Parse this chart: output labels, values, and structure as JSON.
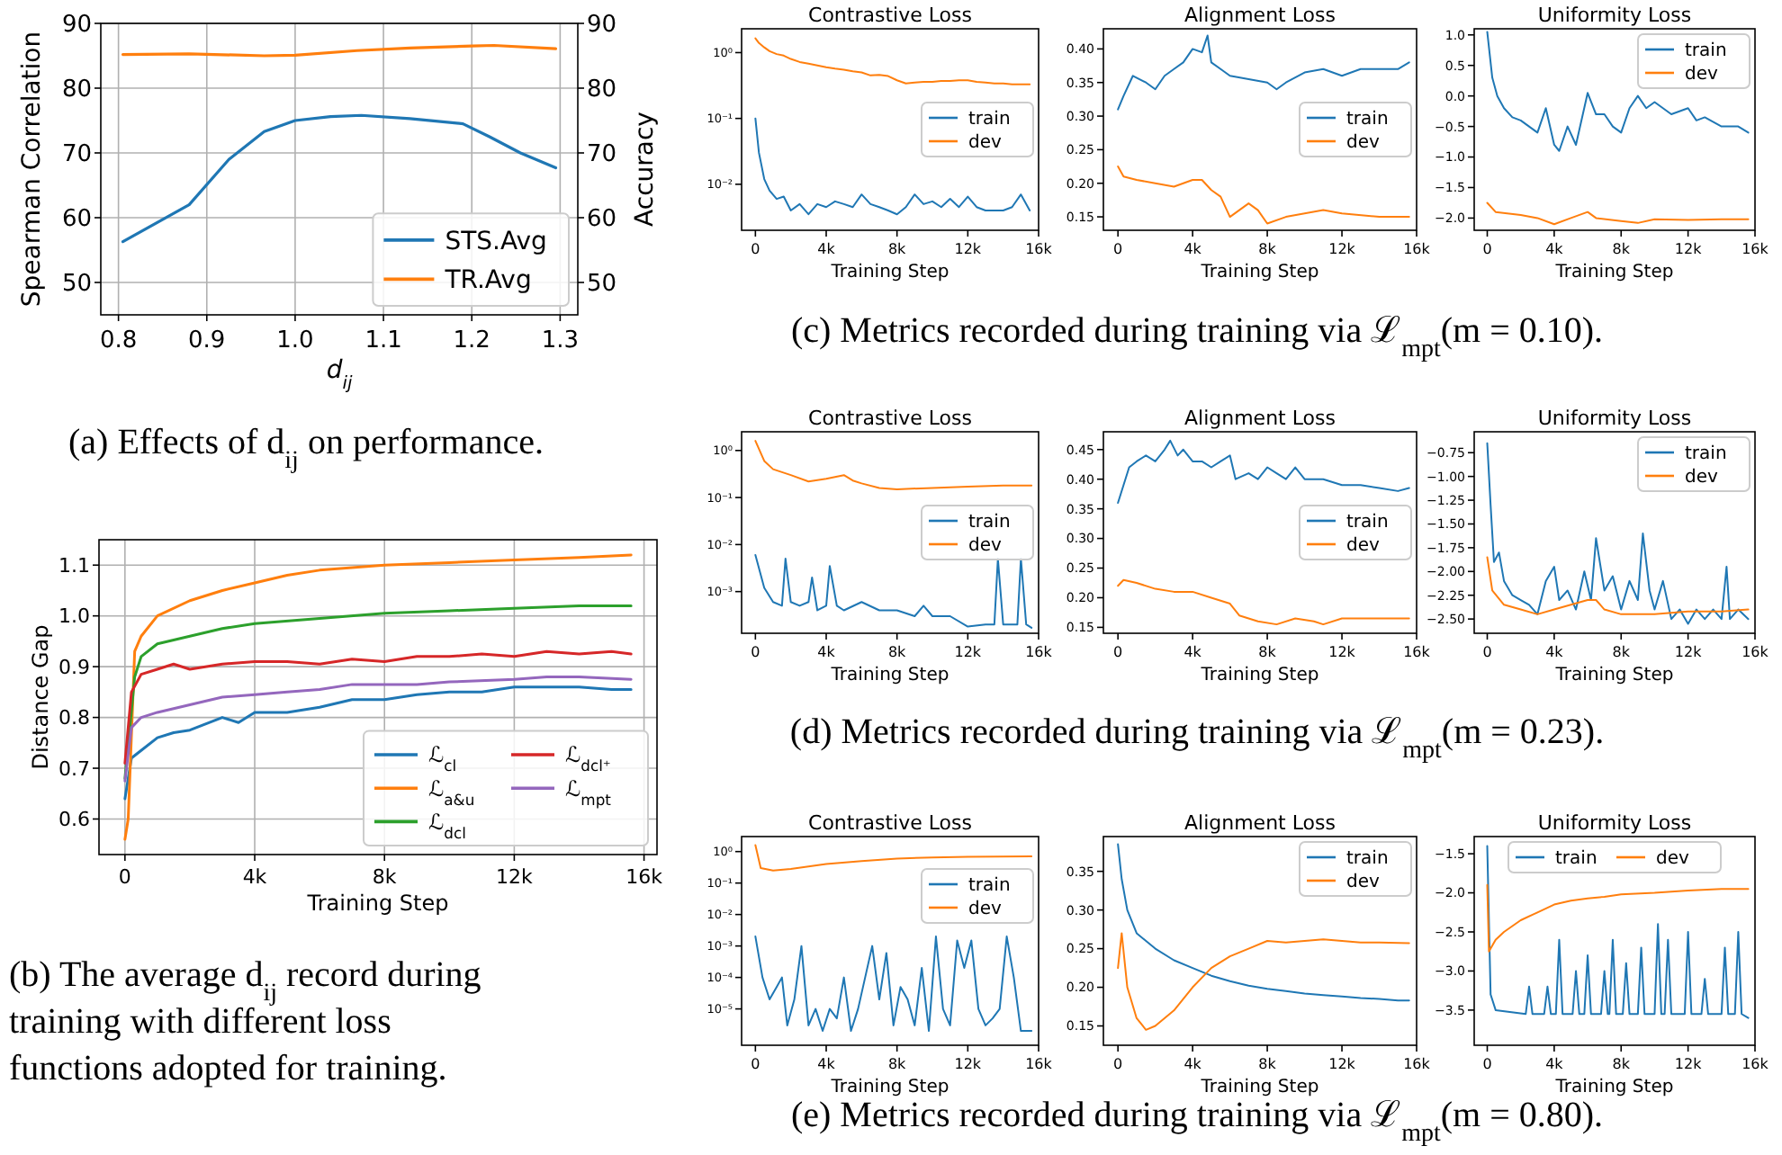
{
  "chart_data": [
    {
      "type": "line",
      "xlabel": "d$_{ij}$",
      "ylabel": "Spearman Correlation",
      "y2label": "Accuracy",
      "annotations": [
        "(a) Effects of d$_{ij}$ on performance."
      ],
      "xlim": [
        0.78,
        1.32
      ],
      "xticks": [
        0.8,
        0.9,
        {
          "value": 1,
          "label": "1.0"
        },
        1.1,
        1.2,
        1.3
      ],
      "ylim": [
        45,
        90
      ],
      "yticks": [
        50,
        60,
        70,
        80,
        90
      ],
      "y2lim": [
        45,
        90
      ],
      "y2ticks": [
        50,
        60,
        70,
        80,
        90
      ],
      "grid": true,
      "legend": "bottom right",
      "series": [
        {
          "name": "STS.Avg",
          "color": "#1f77b4",
          "x": [
            0.805,
            0.88,
            0.925,
            0.965,
            1.0,
            1.04,
            1.075,
            1.13,
            1.19,
            1.22,
            1.255,
            1.295
          ],
          "values": [
            56.3,
            62,
            69,
            73.3,
            75,
            75.6,
            75.8,
            75.3,
            74.5,
            72.5,
            70,
            67.7
          ]
        },
        {
          "name": "TR.Avg",
          "color": "#ff7f0e",
          "x": [
            0.805,
            0.88,
            0.965,
            1.0,
            1.07,
            1.13,
            1.2,
            1.225,
            1.295
          ],
          "values": [
            85.2,
            85.3,
            85.0,
            85.1,
            85.8,
            86.2,
            86.5,
            86.6,
            86.1
          ]
        }
      ]
    },
    {
      "type": "line",
      "xlabel": "Training Step",
      "ylabel": "Distance Gap",
      "annotations": [
        "(b) The average d$_{ij}$ record during training with different loss functions adopted for training."
      ],
      "xlim": [
        -800,
        16400
      ],
      "xticks": [
        0,
        {
          "value": 4000,
          "label": "4k"
        },
        {
          "value": 8000,
          "label": "8k"
        },
        {
          "value": 12000,
          "label": "12k"
        },
        {
          "value": 16000,
          "label": "16k"
        }
      ],
      "ylim": [
        0.53,
        1.15
      ],
      "yticks": [
        0.6,
        0.7,
        0.8,
        0.9,
        {
          "value": 1,
          "label": "1.0"
        },
        1.1
      ],
      "grid": true,
      "legend": "bottom right",
      "series": [
        {
          "name": "ℒ$_{cl}$",
          "color": "#1f77b4",
          "x": [
            0,
            200,
            500,
            1000,
            1500,
            2000,
            3000,
            3500,
            4000,
            5000,
            6000,
            7000,
            8000,
            9000,
            10000,
            11000,
            12000,
            13000,
            14000,
            15000,
            15600
          ],
          "values": [
            0.64,
            0.72,
            0.735,
            0.76,
            0.77,
            0.775,
            0.8,
            0.79,
            0.81,
            0.81,
            0.82,
            0.835,
            0.835,
            0.845,
            0.85,
            0.85,
            0.86,
            0.86,
            0.86,
            0.855,
            0.855
          ]
        },
        {
          "name": "ℒ$_{a&u}$",
          "color": "#ff7f0e",
          "x": [
            0,
            100,
            300,
            500,
            1000,
            2000,
            3000,
            4000,
            5000,
            6000,
            8000,
            10000,
            12000,
            14000,
            15600
          ],
          "values": [
            0.56,
            0.6,
            0.93,
            0.96,
            1.0,
            1.03,
            1.05,
            1.065,
            1.08,
            1.09,
            1.1,
            1.105,
            1.11,
            1.115,
            1.12
          ]
        },
        {
          "name": "ℒ$_{dcl}$",
          "color": "#2ca02c",
          "x": [
            0,
            300,
            500,
            1000,
            2000,
            3000,
            4000,
            6000,
            8000,
            10000,
            12000,
            14000,
            15600
          ],
          "values": [
            0.68,
            0.88,
            0.92,
            0.945,
            0.96,
            0.975,
            0.985,
            0.995,
            1.005,
            1.01,
            1.015,
            1.02,
            1.02
          ]
        },
        {
          "name": "ℒ$_{dcl⁺}$",
          "color": "#d62728",
          "x": [
            0,
            200,
            500,
            1000,
            1500,
            2000,
            3000,
            4000,
            5000,
            6000,
            7000,
            8000,
            9000,
            10000,
            11000,
            12000,
            13000,
            14000,
            15000,
            15600
          ],
          "values": [
            0.71,
            0.85,
            0.885,
            0.895,
            0.905,
            0.895,
            0.905,
            0.91,
            0.91,
            0.905,
            0.915,
            0.91,
            0.92,
            0.92,
            0.925,
            0.92,
            0.93,
            0.925,
            0.93,
            0.925
          ]
        },
        {
          "name": "ℒ$_{mpt}$",
          "color": "#9467bd",
          "x": [
            0,
            200,
            500,
            1000,
            2000,
            3000,
            4000,
            5000,
            6000,
            7000,
            8000,
            9000,
            10000,
            12000,
            13000,
            14000,
            15600
          ],
          "values": [
            0.675,
            0.78,
            0.8,
            0.81,
            0.825,
            0.84,
            0.845,
            0.85,
            0.855,
            0.865,
            0.865,
            0.865,
            0.87,
            0.875,
            0.88,
            0.88,
            0.875
          ]
        }
      ]
    },
    {
      "type": "line",
      "title": "Contrastive Loss",
      "xlabel": "Training Step",
      "log": "y",
      "xlim": [
        -780,
        16000
      ],
      "xticks": [
        0,
        {
          "value": 4000,
          "label": "4k"
        },
        {
          "value": 8000,
          "label": "8k"
        },
        {
          "value": 12000,
          "label": "12k"
        },
        {
          "value": 16000,
          "label": "16k"
        }
      ],
      "ylim": [
        0.002,
        2.3
      ],
      "yticks": [
        {
          "value": 1,
          "label": "10⁰"
        },
        {
          "value": 0.1,
          "label": "10⁻¹"
        },
        {
          "value": 0.01,
          "label": "10⁻²"
        }
      ],
      "legend": "right",
      "x": [
        0,
        200,
        500,
        800,
        1200,
        1600,
        2000,
        2500,
        3000,
        3500,
        4000,
        4500,
        5000,
        5500,
        6000,
        6500,
        7000,
        7500,
        8000,
        8500,
        9000,
        9500,
        10000,
        10500,
        11000,
        11500,
        12000,
        12500,
        13000,
        13500,
        14000,
        14500,
        15000,
        15500
      ],
      "series": [
        {
          "name": "train",
          "color": "#1f77b4",
          "values": [
            0.1,
            0.03,
            0.012,
            0.008,
            0.006,
            0.0065,
            0.004,
            0.005,
            0.0035,
            0.005,
            0.0045,
            0.0055,
            0.005,
            0.0045,
            0.007,
            0.005,
            0.0045,
            0.004,
            0.0035,
            0.0045,
            0.007,
            0.005,
            0.0055,
            0.0045,
            0.006,
            0.0045,
            0.0065,
            0.0045,
            0.004,
            0.004,
            0.004,
            0.0045,
            0.007,
            0.004
          ]
        },
        {
          "name": "dev",
          "color": "#ff7f0e",
          "values": [
            1.65,
            1.4,
            1.2,
            1.05,
            0.95,
            0.9,
            0.8,
            0.72,
            0.68,
            0.64,
            0.6,
            0.57,
            0.55,
            0.52,
            0.5,
            0.45,
            0.46,
            0.44,
            0.38,
            0.34,
            0.35,
            0.36,
            0.36,
            0.37,
            0.37,
            0.38,
            0.38,
            0.36,
            0.35,
            0.34,
            0.34,
            0.33,
            0.33,
            0.33
          ]
        }
      ]
    },
    {
      "type": "line",
      "title": "Alignment Loss",
      "xlabel": "Training Step",
      "annotations": [
        "(c) Metrics recorded during training via ℒ$_{mpt}$(m = 0.10)."
      ],
      "xlim": [
        -780,
        16000
      ],
      "xticks": [
        0,
        {
          "value": 4000,
          "label": "4k"
        },
        {
          "value": 8000,
          "label": "8k"
        },
        {
          "value": 12000,
          "label": "12k"
        },
        {
          "value": 16000,
          "label": "16k"
        }
      ],
      "ylim": [
        0.13,
        0.43
      ],
      "yticks": [
        0.15,
        {
          "value": 0.2,
          "label": "0.20"
        },
        0.25,
        {
          "value": 0.3,
          "label": "0.30"
        },
        0.35,
        {
          "value": 0.4,
          "label": "0.40"
        }
      ],
      "legend": "right",
      "series": [
        {
          "name": "train",
          "color": "#1f77b4",
          "x": [
            0,
            300,
            800,
            1500,
            2000,
            2500,
            3000,
            3500,
            4000,
            4500,
            4800,
            5000,
            5500,
            6000,
            7000,
            8000,
            8500,
            9000,
            10000,
            11000,
            12000,
            13000,
            14000,
            15000,
            15600
          ],
          "values": [
            0.31,
            0.33,
            0.36,
            0.35,
            0.34,
            0.36,
            0.37,
            0.38,
            0.4,
            0.395,
            0.42,
            0.38,
            0.37,
            0.36,
            0.355,
            0.35,
            0.34,
            0.35,
            0.365,
            0.37,
            0.36,
            0.37,
            0.37,
            0.37,
            0.38
          ]
        },
        {
          "name": "dev",
          "color": "#ff7f0e",
          "x": [
            0,
            300,
            1000,
            2000,
            3000,
            4000,
            4500,
            5000,
            5500,
            6000,
            6500,
            7000,
            7500,
            8000,
            9000,
            10000,
            11000,
            12000,
            14000,
            15600
          ],
          "values": [
            0.225,
            0.21,
            0.205,
            0.2,
            0.195,
            0.205,
            0.205,
            0.19,
            0.18,
            0.15,
            0.16,
            0.17,
            0.16,
            0.14,
            0.15,
            0.155,
            0.16,
            0.155,
            0.15,
            0.15
          ]
        }
      ]
    },
    {
      "type": "line",
      "title": "Uniformity Loss",
      "xlabel": "Training Step",
      "xlim": [
        -780,
        16000
      ],
      "xticks": [
        0,
        {
          "value": 4000,
          "label": "4k"
        },
        {
          "value": 8000,
          "label": "8k"
        },
        {
          "value": 12000,
          "label": "12k"
        },
        {
          "value": 16000,
          "label": "16k"
        }
      ],
      "ylim": [
        -2.2,
        1.1
      ],
      "yticks": [
        {
          "value": 1,
          "label": "1.0"
        },
        0.5,
        {
          "value": 0,
          "label": "0.0"
        },
        {
          "value": -0.5,
          "label": "−0.5"
        },
        {
          "value": -1,
          "label": "−1.0"
        },
        {
          "value": -1.5,
          "label": "−1.5"
        },
        {
          "value": -2,
          "label": "−2.0"
        }
      ],
      "legend": "top right",
      "series": [
        {
          "name": "train",
          "color": "#1f77b4",
          "x": [
            0,
            300,
            600,
            1000,
            1500,
            2000,
            2500,
            3000,
            3500,
            4000,
            4300,
            4800,
            5300,
            6000,
            6500,
            7000,
            7500,
            8000,
            8500,
            9000,
            9500,
            10000,
            11000,
            12000,
            12500,
            13000,
            14000,
            15000,
            15600
          ],
          "values": [
            1.05,
            0.3,
            0,
            -0.2,
            -0.35,
            -0.4,
            -0.5,
            -0.6,
            -0.2,
            -0.8,
            -0.9,
            -0.5,
            -0.8,
            0.05,
            -0.3,
            -0.3,
            -0.5,
            -0.6,
            -0.2,
            0,
            -0.2,
            -0.1,
            -0.3,
            -0.2,
            -0.4,
            -0.35,
            -0.5,
            -0.5,
            -0.6
          ]
        },
        {
          "name": "dev",
          "color": "#ff7f0e",
          "x": [
            0,
            500,
            2000,
            3000,
            4000,
            5000,
            6000,
            6500,
            8000,
            9000,
            10000,
            12000,
            14000,
            15600
          ],
          "values": [
            -1.75,
            -1.9,
            -1.95,
            -2,
            -2.1,
            -2,
            -1.9,
            -2,
            -2.05,
            -2.08,
            -2.02,
            -2.03,
            -2.02,
            -2.02
          ]
        }
      ]
    },
    {
      "type": "line",
      "title": "Contrastive Loss",
      "xlabel": "Training Step",
      "log": "y",
      "xlim": [
        -780,
        16000
      ],
      "xticks": [
        0,
        {
          "value": 4000,
          "label": "4k"
        },
        {
          "value": 8000,
          "label": "8k"
        },
        {
          "value": 12000,
          "label": "12k"
        },
        {
          "value": 16000,
          "label": "16k"
        }
      ],
      "ylim": [
        0.00013,
        2.5
      ],
      "yticks": [
        {
          "value": 1,
          "label": "10⁰"
        },
        {
          "value": 0.1,
          "label": "10⁻¹"
        },
        {
          "value": 0.01,
          "label": "10⁻²"
        },
        {
          "value": 0.001,
          "label": "10⁻³"
        }
      ],
      "legend": "right",
      "series": [
        {
          "name": "train",
          "color": "#1f77b4",
          "x": [
            0,
            500,
            1000,
            1500,
            1700,
            2000,
            2500,
            3000,
            3200,
            3500,
            4000,
            4200,
            4600,
            5000,
            6000,
            7000,
            8000,
            9000,
            9500,
            10000,
            11000,
            12000,
            13000,
            13500,
            13700,
            14000,
            14800,
            15000,
            15300,
            15600
          ],
          "values": [
            0.006,
            0.0012,
            0.0006,
            0.0005,
            0.005,
            0.0006,
            0.0005,
            0.0006,
            0.002,
            0.0004,
            0.0005,
            0.0035,
            0.0005,
            0.0004,
            0.0006,
            0.0004,
            0.0004,
            0.0003,
            0.0005,
            0.0003,
            0.0003,
            0.00018,
            0.0002,
            0.0002,
            0.005,
            0.0002,
            0.0002,
            0.005,
            0.0002,
            0.00017
          ]
        },
        {
          "name": "dev",
          "color": "#ff7f0e",
          "x": [
            0,
            500,
            1000,
            2000,
            3000,
            4000,
            5000,
            5500,
            6000,
            7000,
            8000,
            10000,
            12000,
            14000,
            15600
          ],
          "values": [
            1.6,
            0.6,
            0.4,
            0.3,
            0.22,
            0.25,
            0.3,
            0.23,
            0.2,
            0.16,
            0.15,
            0.16,
            0.17,
            0.18,
            0.18
          ]
        }
      ]
    },
    {
      "type": "line",
      "title": "Alignment Loss",
      "xlabel": "Training Step",
      "annotations": [
        "(d) Metrics recorded during training via ℒ$_{mpt}$(m = 0.23)."
      ],
      "xlim": [
        -780,
        16000
      ],
      "xticks": [
        0,
        {
          "value": 4000,
          "label": "4k"
        },
        {
          "value": 8000,
          "label": "8k"
        },
        {
          "value": 12000,
          "label": "12k"
        },
        {
          "value": 16000,
          "label": "16k"
        }
      ],
      "ylim": [
        0.14,
        0.48
      ],
      "yticks": [
        0.15,
        {
          "value": 0.2,
          "label": "0.20"
        },
        0.25,
        {
          "value": 0.3,
          "label": "0.30"
        },
        0.35,
        {
          "value": 0.4,
          "label": "0.40"
        },
        0.45
      ],
      "legend": "right",
      "series": [
        {
          "name": "train",
          "color": "#1f77b4",
          "x": [
            0,
            300,
            600,
            1000,
            1500,
            2000,
            2500,
            2800,
            3200,
            3500,
            4000,
            4500,
            5000,
            5500,
            6000,
            6300,
            7000,
            7500,
            8000,
            8500,
            9000,
            9500,
            10000,
            11000,
            12000,
            13000,
            14000,
            15000,
            15600
          ],
          "values": [
            0.36,
            0.39,
            0.42,
            0.43,
            0.44,
            0.43,
            0.45,
            0.465,
            0.44,
            0.45,
            0.43,
            0.43,
            0.42,
            0.43,
            0.44,
            0.4,
            0.41,
            0.4,
            0.42,
            0.41,
            0.4,
            0.42,
            0.4,
            0.4,
            0.39,
            0.39,
            0.385,
            0.38,
            0.385
          ]
        },
        {
          "name": "dev",
          "color": "#ff7f0e",
          "x": [
            0,
            300,
            1000,
            2000,
            3000,
            4000,
            5000,
            6000,
            6500,
            7500,
            8500,
            9500,
            10500,
            11000,
            12000,
            13000,
            15600
          ],
          "values": [
            0.22,
            0.23,
            0.225,
            0.215,
            0.21,
            0.21,
            0.2,
            0.19,
            0.17,
            0.16,
            0.155,
            0.165,
            0.16,
            0.155,
            0.165,
            0.165,
            0.165
          ]
        }
      ]
    },
    {
      "type": "line",
      "title": "Uniformity Loss",
      "xlabel": "Training Step",
      "xlim": [
        -780,
        16000
      ],
      "xticks": [
        0,
        {
          "value": 4000,
          "label": "4k"
        },
        {
          "value": 8000,
          "label": "8k"
        },
        {
          "value": 12000,
          "label": "12k"
        },
        {
          "value": 16000,
          "label": "16k"
        }
      ],
      "ylim": [
        -2.65,
        -0.53
      ],
      "yticks": [
        {
          "value": -0.75,
          "label": "−0.75"
        },
        {
          "value": -1,
          "label": "−1.00"
        },
        {
          "value": -1.25,
          "label": "−1.25"
        },
        {
          "value": -1.5,
          "label": "−1.50"
        },
        {
          "value": -1.75,
          "label": "−1.75"
        },
        {
          "value": -2,
          "label": "−2.00"
        },
        {
          "value": -2.25,
          "label": "−2.25"
        },
        {
          "value": -2.5,
          "label": "−2.50"
        }
      ],
      "legend": "top right",
      "series": [
        {
          "name": "train",
          "color": "#1f77b4",
          "x": [
            0,
            200,
            400,
            700,
            1000,
            1500,
            2000,
            2500,
            3000,
            3500,
            4000,
            4300,
            4800,
            5300,
            5800,
            6200,
            6500,
            7000,
            7500,
            8000,
            8500,
            9000,
            9300,
            9700,
            10000,
            10500,
            11000,
            11500,
            12000,
            12500,
            13000,
            13500,
            14000,
            14300,
            14500,
            15000,
            15600
          ],
          "values": [
            -0.65,
            -1.3,
            -1.9,
            -1.8,
            -2.1,
            -2.25,
            -2.3,
            -2.35,
            -2.45,
            -2.1,
            -1.95,
            -2.3,
            -2.2,
            -2.4,
            -2,
            -2.3,
            -1.65,
            -2.2,
            -2.05,
            -2.4,
            -2.1,
            -2.3,
            -1.6,
            -2.2,
            -2.4,
            -2.1,
            -2.5,
            -2.4,
            -2.55,
            -2.4,
            -2.5,
            -2.4,
            -2.5,
            -1.95,
            -2.5,
            -2.4,
            -2.5
          ]
        },
        {
          "name": "dev",
          "color": "#ff7f0e",
          "x": [
            0,
            300,
            1000,
            2000,
            3000,
            4000,
            5000,
            6000,
            6500,
            7000,
            8000,
            9000,
            10000,
            12000,
            14000,
            15600
          ],
          "values": [
            -1.85,
            -2.2,
            -2.35,
            -2.4,
            -2.45,
            -2.4,
            -2.35,
            -2.3,
            -2.3,
            -2.4,
            -2.45,
            -2.45,
            -2.45,
            -2.42,
            -2.42,
            -2.4
          ]
        }
      ]
    },
    {
      "type": "line",
      "title": "Contrastive Loss",
      "xlabel": "Training Step",
      "log": "y",
      "xlim": [
        -780,
        16000
      ],
      "xticks": [
        0,
        {
          "value": 4000,
          "label": "4k"
        },
        {
          "value": 8000,
          "label": "8k"
        },
        {
          "value": 12000,
          "label": "12k"
        },
        {
          "value": 16000,
          "label": "16k"
        }
      ],
      "ylim": [
        7e-07,
        3
      ],
      "yticks": [
        {
          "value": 1,
          "label": "10⁰"
        },
        {
          "value": 0.1,
          "label": "10⁻¹"
        },
        {
          "value": 0.01,
          "label": "10⁻²"
        },
        {
          "value": 0.001,
          "label": "10⁻³"
        },
        {
          "value": 0.0001,
          "label": "10⁻⁴"
        },
        {
          "value": 1e-05,
          "label": "10⁻⁵"
        }
      ],
      "legend": "right",
      "series": [
        {
          "name": "train",
          "color": "#1f77b4",
          "x": [
            0,
            400,
            800,
            1200,
            1500,
            1800,
            2200,
            2600,
            3000,
            3400,
            3800,
            4200,
            4600,
            5000,
            5400,
            5800,
            6200,
            6600,
            7000,
            7400,
            7800,
            8200,
            8600,
            9000,
            9400,
            9800,
            10200,
            10600,
            11000,
            11400,
            11800,
            12200,
            12600,
            13000,
            13400,
            13800,
            14200,
            14600,
            15000,
            15600
          ],
          "values": [
            0.002,
            0.0001,
            2e-05,
            5e-05,
            0.0001,
            3e-06,
            2e-05,
            0.001,
            3e-06,
            1e-05,
            2e-06,
            1e-05,
            5e-06,
            0.0001,
            2e-06,
            1e-05,
            0.0001,
            0.001,
            2e-05,
            0.0006,
            3e-06,
            5e-05,
            2e-05,
            3e-06,
            0.0002,
            2e-06,
            0.002,
            1e-05,
            3e-06,
            0.0015,
            0.0002,
            0.0015,
            1e-05,
            3e-06,
            5e-06,
            1e-05,
            0.002,
            0.0001,
            2e-06,
            2e-06
          ]
        },
        {
          "name": "dev",
          "color": "#ff7f0e",
          "x": [
            0,
            300,
            1000,
            2000,
            4000,
            6000,
            8000,
            10000,
            12000,
            15600
          ],
          "values": [
            1.6,
            0.3,
            0.25,
            0.28,
            0.4,
            0.5,
            0.6,
            0.65,
            0.68,
            0.7
          ]
        }
      ]
    },
    {
      "type": "line",
      "title": "Alignment Loss",
      "xlabel": "Training Step",
      "annotations": [
        "(e) Metrics recorded during training via ℒ$_{mpt}$(m = 0.80)."
      ],
      "xlim": [
        -780,
        16000
      ],
      "xticks": [
        0,
        {
          "value": 4000,
          "label": "4k"
        },
        {
          "value": 8000,
          "label": "8k"
        },
        {
          "value": 12000,
          "label": "12k"
        },
        {
          "value": 16000,
          "label": "16k"
        }
      ],
      "ylim": [
        0.125,
        0.395
      ],
      "yticks": [
        0.15,
        {
          "value": 0.2,
          "label": "0.20"
        },
        0.25,
        {
          "value": 0.3,
          "label": "0.30"
        },
        0.35
      ],
      "legend": "top right",
      "series": [
        {
          "name": "train",
          "color": "#1f77b4",
          "x": [
            0,
            200,
            500,
            1000,
            1500,
            2000,
            3000,
            4000,
            5000,
            6000,
            7000,
            8000,
            9000,
            10000,
            11000,
            12000,
            13000,
            14000,
            15000,
            15600
          ],
          "values": [
            0.385,
            0.34,
            0.3,
            0.27,
            0.26,
            0.25,
            0.235,
            0.225,
            0.215,
            0.208,
            0.202,
            0.198,
            0.195,
            0.192,
            0.19,
            0.188,
            0.186,
            0.185,
            0.183,
            0.183
          ]
        },
        {
          "name": "dev",
          "color": "#ff7f0e",
          "x": [
            0,
            200,
            500,
            1000,
            1500,
            2000,
            3000,
            4000,
            5000,
            6000,
            7000,
            8000,
            9000,
            10000,
            11000,
            12000,
            13000,
            14000,
            15600
          ],
          "values": [
            0.225,
            0.27,
            0.2,
            0.16,
            0.145,
            0.15,
            0.17,
            0.2,
            0.225,
            0.24,
            0.25,
            0.26,
            0.258,
            0.26,
            0.262,
            0.26,
            0.258,
            0.258,
            0.257
          ]
        }
      ]
    },
    {
      "type": "line",
      "title": "Uniformity Loss",
      "xlabel": "Training Step",
      "xlim": [
        -780,
        16000
      ],
      "xticks": [
        0,
        {
          "value": 4000,
          "label": "4k"
        },
        {
          "value": 8000,
          "label": "8k"
        },
        {
          "value": 12000,
          "label": "12k"
        },
        {
          "value": 16000,
          "label": "16k"
        }
      ],
      "ylim": [
        -3.95,
        -1.28
      ],
      "yticks": [
        {
          "value": -1.5,
          "label": "−1.5"
        },
        {
          "value": -2,
          "label": "−2.0"
        },
        {
          "value": -2.5,
          "label": "−2.5"
        },
        {
          "value": -3,
          "label": "−3.0"
        },
        {
          "value": -3.5,
          "label": "−3.5"
        }
      ],
      "legend": "top",
      "series": [
        {
          "name": "train",
          "color": "#1f77b4",
          "x": [
            0,
            200,
            500,
            2300,
            2500,
            2700,
            3400,
            3600,
            3800,
            4100,
            4300,
            4500,
            5100,
            5300,
            5500,
            5800,
            6000,
            6200,
            6800,
            7000,
            7200,
            7300,
            7500,
            7700,
            8100,
            8300,
            8500,
            9000,
            9200,
            9400,
            10000,
            10200,
            10400,
            10600,
            10800,
            11000,
            11800,
            12000,
            12200,
            12800,
            13000,
            13200,
            14000,
            14200,
            14400,
            14800,
            15000,
            15200,
            15600
          ],
          "values": [
            -1.4,
            -3.3,
            -3.5,
            -3.55,
            -3.2,
            -3.55,
            -3.55,
            -3.2,
            -3.55,
            -3.55,
            -2.6,
            -3.55,
            -3.55,
            -3,
            -3.55,
            -3.55,
            -2.8,
            -3.55,
            -3.55,
            -3,
            -3.55,
            -3.55,
            -2.6,
            -3.55,
            -3.55,
            -2.9,
            -3.55,
            -3.55,
            -2.7,
            -3.55,
            -3.55,
            -2.4,
            -3.55,
            -3.55,
            -2.6,
            -3.55,
            -3.55,
            -2.5,
            -3.55,
            -3.55,
            -3.1,
            -3.55,
            -3.55,
            -2.7,
            -3.55,
            -3.55,
            -2.5,
            -3.55,
            -3.6
          ]
        },
        {
          "name": "dev",
          "color": "#ff7f0e",
          "x": [
            0,
            100,
            500,
            1000,
            2000,
            3000,
            4000,
            5000,
            6000,
            7000,
            8000,
            10000,
            12000,
            14000,
            15600
          ],
          "values": [
            -1.9,
            -2.75,
            -2.6,
            -2.5,
            -2.35,
            -2.25,
            -2.15,
            -2.1,
            -2.07,
            -2.05,
            -2.02,
            -2,
            -1.97,
            -1.95,
            -1.95
          ]
        }
      ]
    }
  ]
}
